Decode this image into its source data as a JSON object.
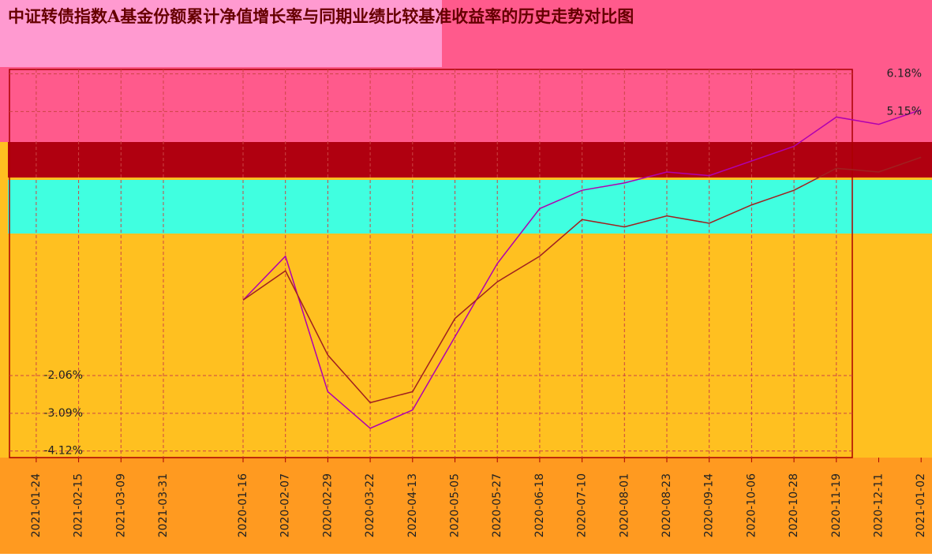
{
  "chart_data": {
    "type": "line",
    "title": "中证转债指数A基金份额累计净值增长率与同期业绩比较基准收益率的历史走势对比图",
    "x": [
      "2020-01-16",
      "2020-02-07",
      "2020-02-29",
      "2020-03-22",
      "2020-04-13",
      "2020-05-05",
      "2020-05-27",
      "2020-06-18",
      "2020-07-10",
      "2020-08-01",
      "2020-08-23",
      "2020-09-14",
      "2020-10-06",
      "2020-10-28",
      "2020-11-19",
      "2020-12-11",
      "2021-01-02",
      "2021-01-24",
      "2021-02-15",
      "2021-03-09",
      "2021-03-31"
    ],
    "series": [
      {
        "color": "#b000b0",
        "values": [
          0,
          1.2,
          -2.5,
          -3.5,
          -3.0,
          -1.0,
          1.0,
          2.5,
          3.0,
          3.2,
          3.5,
          3.4,
          3.8,
          4.2,
          5.0,
          4.8,
          5.2,
          null,
          null,
          null,
          null
        ]
      },
      {
        "color": "#a02020",
        "values": [
          0,
          0.8,
          -1.5,
          -2.8,
          -2.5,
          -0.5,
          0.5,
          1.2,
          2.2,
          2.0,
          2.3,
          2.1,
          2.6,
          3.0,
          3.6,
          3.5,
          3.9,
          null,
          null,
          null,
          null
        ]
      }
    ],
    "ylim": [
      -4.3,
      6.3
    ],
    "yticks": [
      {
        "value": 6.18,
        "label": "6.18%"
      },
      {
        "value": 5.15,
        "label": "5.15%"
      },
      {
        "value": -2.06,
        "label": "-2.06%"
      },
      {
        "value": -3.09,
        "label": "-3.09%"
      },
      {
        "value": -4.12,
        "label": "-4.12%"
      }
    ],
    "grid": true
  }
}
